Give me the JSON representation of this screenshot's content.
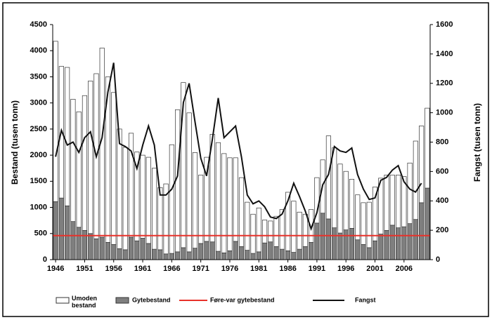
{
  "chart_data": {
    "type": "stacked_bar_line",
    "y_label": "Bestand (tusen tonn)",
    "y2_label": "Fangst (tusen tonn)",
    "x": [
      1946,
      1947,
      1948,
      1949,
      1950,
      1951,
      1952,
      1953,
      1954,
      1955,
      1956,
      1957,
      1958,
      1959,
      1960,
      1961,
      1962,
      1963,
      1964,
      1965,
      1966,
      1967,
      1968,
      1969,
      1970,
      1971,
      1972,
      1973,
      1974,
      1975,
      1976,
      1977,
      1978,
      1979,
      1980,
      1981,
      1982,
      1983,
      1984,
      1985,
      1986,
      1987,
      1988,
      1989,
      1990,
      1991,
      1992,
      1993,
      1994,
      1995,
      1996,
      1997,
      1998,
      1999,
      2000,
      2001,
      2002,
      2003,
      2004,
      2005,
      2006,
      2007,
      2008,
      2009,
      2010
    ],
    "xlim": [
      1945.5,
      2010.5
    ],
    "xticks": [
      1946,
      1951,
      1956,
      1961,
      1966,
      1971,
      1976,
      1981,
      1986,
      1991,
      1996,
      2001,
      2006
    ],
    "ylim": [
      0,
      4500
    ],
    "yticks": [
      0,
      500,
      1000,
      1500,
      2000,
      2500,
      3000,
      3500,
      4000,
      4500
    ],
    "y2lim": [
      0,
      1600
    ],
    "y2ticks": [
      0,
      200,
      400,
      600,
      800,
      1000,
      1200,
      1400,
      1600
    ],
    "series": [
      {
        "name": "Gytebestand",
        "color": "#7f7f7f",
        "values": [
          1110,
          1180,
          1030,
          730,
          620,
          560,
          500,
          400,
          430,
          330,
          290,
          210,
          190,
          430,
          360,
          410,
          310,
          200,
          190,
          110,
          120,
          150,
          230,
          150,
          220,
          310,
          350,
          340,
          160,
          130,
          170,
          350,
          250,
          180,
          120,
          150,
          320,
          340,
          250,
          200,
          170,
          140,
          200,
          250,
          330,
          700,
          890,
          780,
          610,
          510,
          570,
          600,
          380,
          290,
          230,
          360,
          490,
          560,
          660,
          610,
          630,
          690,
          770,
          1090,
          1370
        ]
      },
      {
        "name": "Umoden bestand",
        "color": "#ffffff",
        "values": [
          3070,
          2520,
          2650,
          2340,
          2210,
          2580,
          2920,
          3160,
          3620,
          3170,
          2910,
          2290,
          1960,
          1990,
          1700,
          1590,
          1650,
          1550,
          1190,
          1340,
          2080,
          2720,
          3160,
          2660,
          1830,
          1310,
          1610,
          2060,
          2080,
          1900,
          1780,
          1600,
          1320,
          920,
          750,
          840,
          440,
          400,
          580,
          760,
          1120,
          980,
          710,
          620,
          630,
          870,
          1020,
          1590,
          1530,
          1320,
          1120,
          940,
          860,
          800,
          870,
          1030,
          1070,
          1060,
          960,
          1010,
          960,
          1160,
          1500,
          1470,
          1530
        ]
      },
      {
        "name": "Fangst",
        "color": "#111111",
        "axis": "y2",
        "values": [
          700,
          880,
          780,
          800,
          730,
          830,
          870,
          700,
          830,
          1140,
          1340,
          790,
          770,
          740,
          620,
          780,
          910,
          780,
          440,
          440,
          480,
          570,
          1070,
          1200,
          940,
          690,
          570,
          820,
          1100,
          830,
          870,
          910,
          700,
          440,
          380,
          400,
          360,
          290,
          280,
          310,
          400,
          520,
          430,
          330,
          210,
          320,
          510,
          580,
          770,
          740,
          730,
          760,
          580,
          480,
          410,
          420,
          540,
          560,
          610,
          640,
          530,
          480,
          460,
          520,
          null
        ]
      }
    ],
    "reference_line": {
      "name": "Føre-var gytebestand",
      "value": 460,
      "color": "#e8312a"
    }
  }
}
